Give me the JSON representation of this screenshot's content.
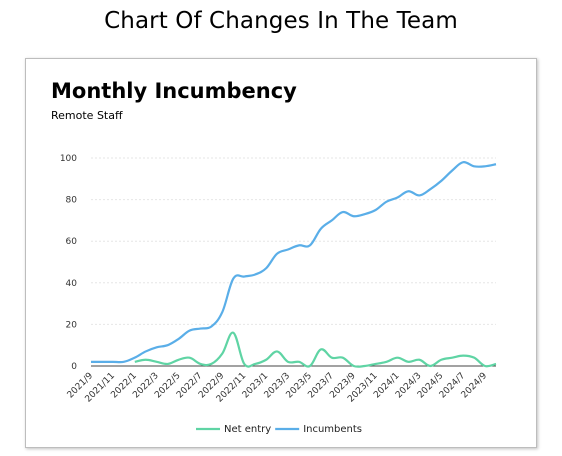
{
  "page": {
    "title": "Chart Of Changes In The Team"
  },
  "chart_data": {
    "type": "line",
    "title": "Monthly Incumbency",
    "subtitle": "Remote Staff",
    "ylim": [
      0,
      100
    ],
    "yticks": [
      0,
      20,
      40,
      60,
      80,
      100
    ],
    "grid": true,
    "legend_position": "bottom",
    "x": [
      "2021/9",
      "2021/10",
      "2021/11",
      "2021/12",
      "2022/1",
      "2022/2",
      "2022/3",
      "2022/4",
      "2022/5",
      "2022/6",
      "2022/7",
      "2022/8",
      "2022/9",
      "2022/10",
      "2022/11",
      "2022/12",
      "2023/1",
      "2023/2",
      "2023/3",
      "2023/4",
      "2023/5",
      "2023/6",
      "2023/7",
      "2023/8",
      "2023/9",
      "2023/10",
      "2023/11",
      "2023/12",
      "2024/1",
      "2024/2",
      "2024/3",
      "2024/4",
      "2024/5",
      "2024/6",
      "2024/7",
      "2024/8",
      "2024/9",
      "2024/10"
    ],
    "x_tick_labels": [
      "2021/9",
      "2021/11",
      "2022/1",
      "2022/3",
      "2022/5",
      "2022/7",
      "2022/9",
      "2022/11",
      "2023/1",
      "2023/3",
      "2023/5",
      "2023/7",
      "2023/9",
      "2023/11",
      "2024/1",
      "2024/3",
      "2024/5",
      "2024/7",
      "2024/9"
    ],
    "series": [
      {
        "name": "Net entry",
        "color": "#5fd4a4",
        "values": [
          null,
          null,
          null,
          null,
          2,
          3,
          2,
          1,
          3,
          4,
          1,
          1,
          6,
          16,
          1,
          1,
          3,
          7,
          2,
          2,
          0,
          8,
          4,
          4,
          0,
          0,
          1,
          2,
          4,
          2,
          3,
          0,
          3,
          4,
          5,
          4,
          0,
          1
        ]
      },
      {
        "name": "Incumbents",
        "color": "#5aaee8",
        "values": [
          2,
          2,
          2,
          2,
          4,
          7,
          9,
          10,
          13,
          17,
          18,
          19,
          26,
          42,
          43,
          44,
          47,
          54,
          56,
          58,
          58,
          66,
          70,
          74,
          72,
          73,
          75,
          79,
          81,
          84,
          82,
          85,
          89,
          94,
          98,
          96,
          96,
          97
        ]
      }
    ]
  }
}
